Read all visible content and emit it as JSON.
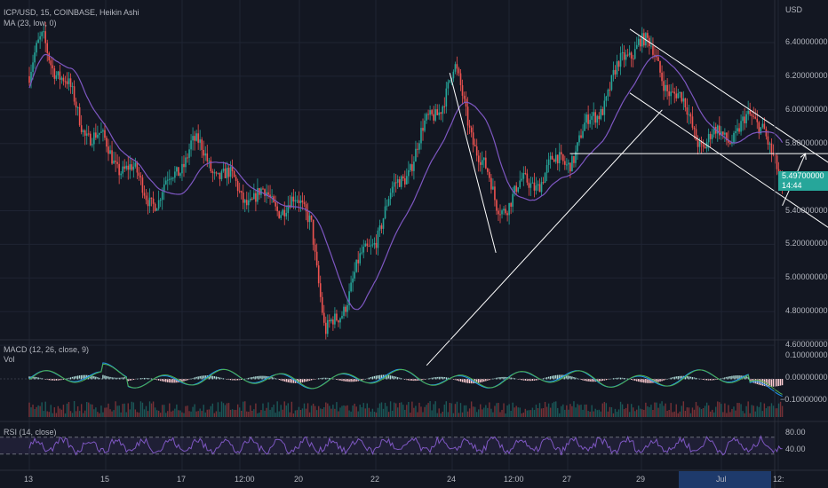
{
  "header": {
    "symbol_line": "ICP/USD, 15, COINBASE, Heikin Ashi",
    "ma_line": "MA (23, low, 0)",
    "currency": "USD"
  },
  "price_axis": {
    "ticks": [
      "6.40000000",
      "6.20000000",
      "6.00000000",
      "5.80000000",
      "5.60000000",
      "5.40000000",
      "5.20000000",
      "5.00000000",
      "4.80000000",
      "4.60000000"
    ],
    "last_price": "5.49700000",
    "countdown": "14:44"
  },
  "macd": {
    "label": "MACD (12, 26, close, 9)",
    "vol_label": "Vol",
    "ticks": [
      "0.10000000",
      "0.00000000",
      "−0.10000000"
    ]
  },
  "rsi": {
    "label": "RSI (14, close)",
    "ticks": [
      "80.00",
      "40.00"
    ]
  },
  "time_axis": {
    "labels": [
      "13",
      "15",
      "17",
      "12:00",
      "20",
      "22",
      "24",
      "12:00",
      "27",
      "29",
      "Jul",
      "12:"
    ]
  },
  "colors": {
    "background": "#131722",
    "up": "#26a69a",
    "down": "#ef5350",
    "ma": "#7e57c2",
    "macd_line": "#2196f3",
    "signal_line": "#ff9800",
    "rsi": "#7e57c2",
    "drawings": "#ffffff"
  },
  "chart_data": {
    "type": "line",
    "title": "ICP/USD, 15, COINBASE, Heikin Ashi",
    "y_unit": "USD",
    "ylim": [
      4.5,
      6.55
    ],
    "x_ticks": [
      "13",
      "15",
      "17",
      "12:00",
      "20",
      "22",
      "24",
      "12:00",
      "27",
      "29",
      "Jul",
      "12:"
    ],
    "price_path_dates": [
      "13",
      "14",
      "15",
      "16",
      "17",
      "18",
      "19",
      "20",
      "21",
      "22",
      "23",
      "24",
      "25",
      "26",
      "27",
      "28",
      "29"
    ],
    "price_path": [
      6.2,
      6.42,
      5.9,
      5.45,
      5.8,
      5.5,
      5.46,
      5.4,
      4.62,
      5.45,
      6.22,
      5.42,
      5.75,
      6.45,
      5.8,
      5.95,
      5.46
    ],
    "price_path_x_index": [
      0,
      0.15,
      0.6,
      1.4,
      1.75,
      2.3,
      2.6,
      3.05,
      3.2,
      3.9,
      4.6,
      5.05,
      5.9,
      6.6,
      7.3,
      7.95,
      8.15
    ],
    "ma_period": 23,
    "last_price": 5.497,
    "drawings": [
      {
        "type": "trendline",
        "from": [
          4.3,
          4.48
        ],
        "to": [
          6.85,
          6.0
        ]
      },
      {
        "type": "trendline",
        "from": [
          4.55,
          6.22
        ],
        "to": [
          5.05,
          5.15
        ]
      },
      {
        "type": "horizontal",
        "from": [
          5.85,
          5.74
        ],
        "to": [
          9.45,
          5.74
        ]
      },
      {
        "type": "channel-top",
        "from": [
          6.5,
          6.48
        ],
        "to": [
          9.1,
          5.52
        ]
      },
      {
        "type": "channel-bottom",
        "from": [
          6.5,
          6.1
        ],
        "to": [
          9.4,
          5.02
        ]
      },
      {
        "type": "arrow",
        "from": [
          8.15,
          5.43
        ],
        "to": [
          8.4,
          5.74
        ]
      }
    ],
    "macd_ylim": [
      -0.15,
      0.15
    ],
    "rsi_ylim": [
      20,
      90
    ],
    "rsi_bands": [
      70,
      30
    ]
  }
}
